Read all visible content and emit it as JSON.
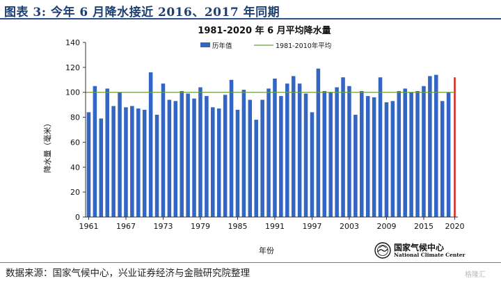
{
  "figure": {
    "heading": "图表 3:  今年 6 月降水接近 2016、2017 年同期",
    "source": "数据来源：国家气候中心，兴业证券经济与金融研究院整理",
    "logo_cn": "国家气候中心",
    "logo_en": "National Climate Center",
    "watermark": "格隆汇"
  },
  "chart_data": {
    "type": "bar",
    "title": "1981-2020 年 6 月平均降水量",
    "xlabel": "年份",
    "ylabel": "降水量（毫米）",
    "ylim": [
      0,
      140
    ],
    "yticks": [
      0,
      20,
      40,
      60,
      80,
      100,
      120,
      140
    ],
    "xtick_labels": [
      "1961",
      "1967",
      "1973",
      "1979",
      "1985",
      "1991",
      "1997",
      "2003",
      "2009",
      "2015",
      "2020"
    ],
    "legend_position": "top",
    "categories": [
      "1961",
      "1962",
      "1963",
      "1964",
      "1965",
      "1966",
      "1967",
      "1968",
      "1969",
      "1970",
      "1971",
      "1972",
      "1973",
      "1974",
      "1975",
      "1976",
      "1977",
      "1978",
      "1979",
      "1980",
      "1981",
      "1982",
      "1983",
      "1984",
      "1985",
      "1986",
      "1987",
      "1988",
      "1989",
      "1990",
      "1991",
      "1992",
      "1993",
      "1994",
      "1995",
      "1996",
      "1997",
      "1998",
      "1999",
      "2000",
      "2001",
      "2002",
      "2003",
      "2004",
      "2005",
      "2006",
      "2007",
      "2008",
      "2009",
      "2010",
      "2011",
      "2012",
      "2013",
      "2014",
      "2015",
      "2016",
      "2017",
      "2018",
      "2019",
      "2020"
    ],
    "series": [
      {
        "name": "历年值",
        "color": "#3366c2",
        "values": [
          84,
          105,
          79,
          103,
          89,
          100,
          88,
          89,
          87,
          86,
          116,
          82,
          107,
          94,
          93,
          101,
          99,
          95,
          104,
          97,
          88,
          87,
          98,
          110,
          86,
          102,
          94,
          78,
          94,
          103,
          111,
          97,
          107,
          113,
          107,
          99,
          84,
          119,
          101,
          100,
          104,
          112,
          105,
          82,
          101,
          97,
          96,
          112,
          92,
          93,
          101,
          103,
          100,
          101,
          105,
          113,
          114,
          93,
          100,
          112
        ]
      },
      {
        "name": "1981-2010年平均",
        "color": "#6f9b3f",
        "value": 100
      }
    ],
    "highlight": {
      "category": "2020",
      "color": "#e0201a"
    }
  }
}
